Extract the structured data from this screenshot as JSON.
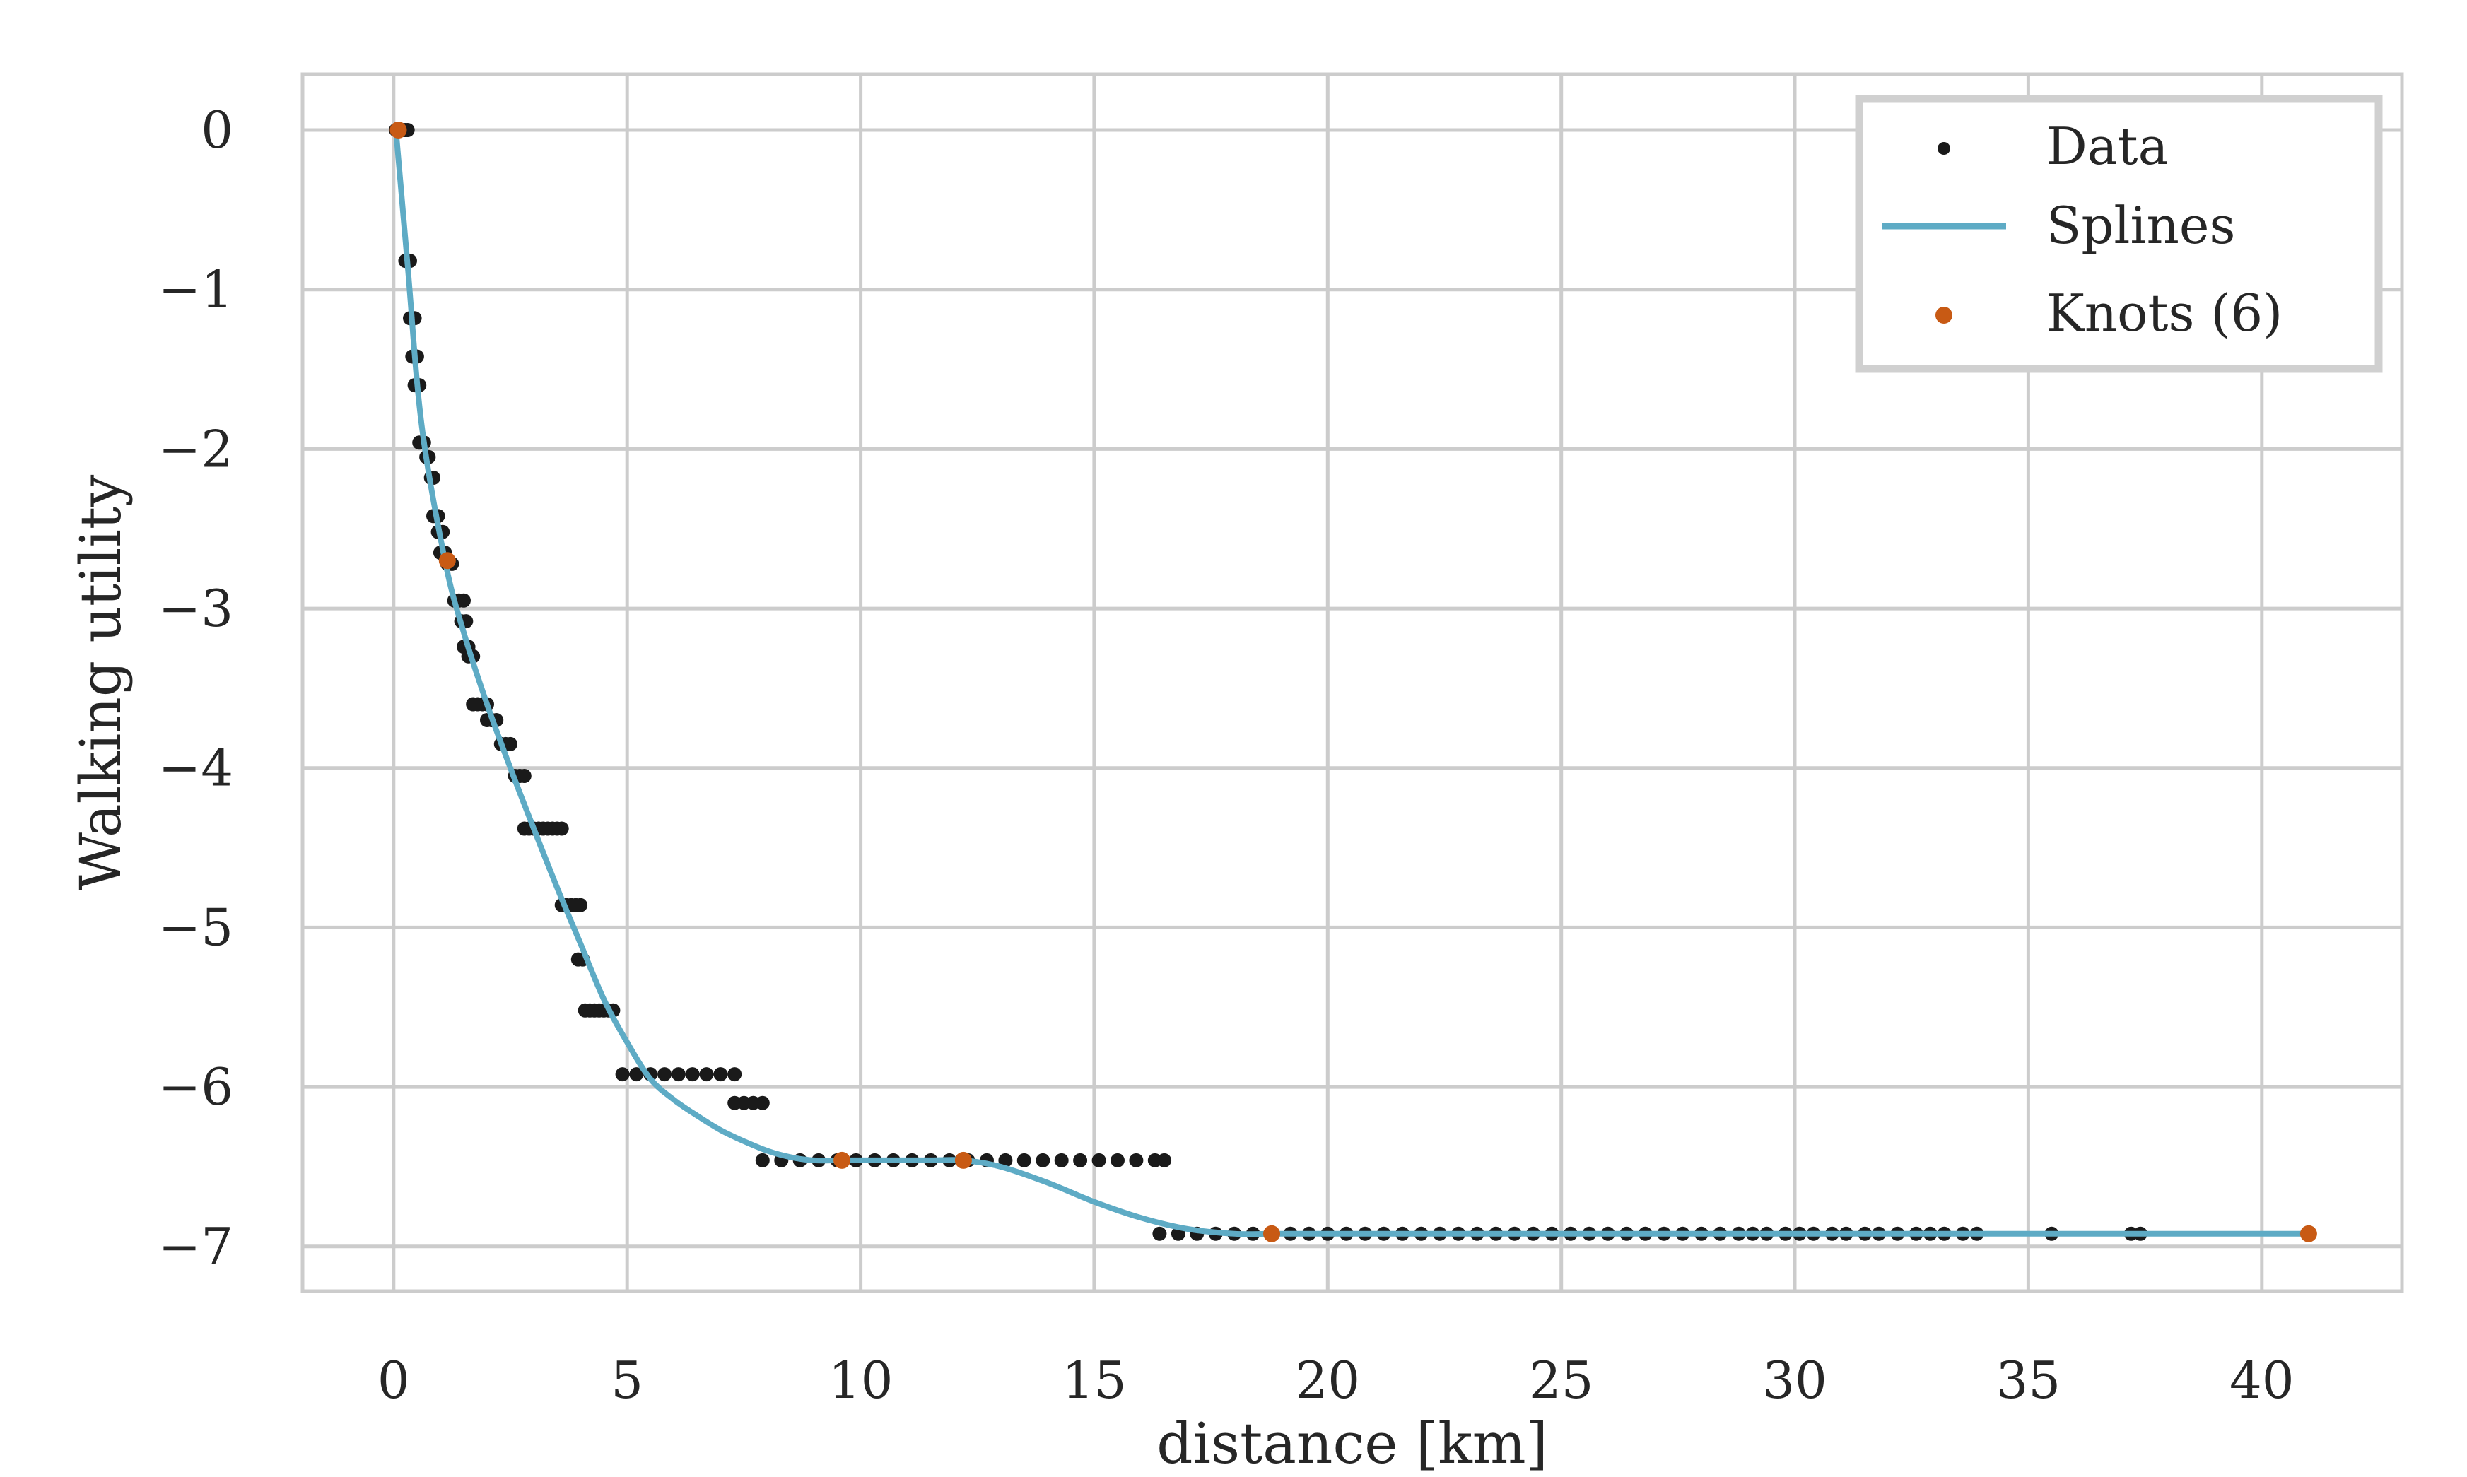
{
  "chart_data": {
    "type": "scatter",
    "title": "",
    "xlabel": "distance [km]",
    "ylabel": "Walking utility",
    "xlim": [
      -1.95,
      43.0
    ],
    "ylim": [
      -7.28,
      0.35
    ],
    "xticks": [
      0,
      5,
      10,
      15,
      20,
      25,
      30,
      35,
      40
    ],
    "yticks": [
      0,
      -1,
      -2,
      -3,
      -4,
      -5,
      -6,
      -7
    ],
    "xtick_labels": [
      "0",
      "5",
      "10",
      "15",
      "20",
      "25",
      "30",
      "35",
      "40"
    ],
    "ytick_labels": [
      "0",
      "−1",
      "−2",
      "−3",
      "−4",
      "−5",
      "−6",
      "−7"
    ],
    "grid": true,
    "legend": {
      "position": "top-right",
      "entries": [
        {
          "label": "Data",
          "kind": "marker",
          "color": "#1a1a1a"
        },
        {
          "label": "Splines",
          "kind": "line",
          "color": "#5eabc5"
        },
        {
          "label": "Knots (6)",
          "kind": "marker",
          "color": "#c85a14"
        }
      ]
    },
    "series": [
      {
        "name": "Data",
        "kind": "scatter",
        "color": "#1a1a1a",
        "points": [
          [
            0.05,
            0.0
          ],
          [
            0.1,
            0.0
          ],
          [
            0.15,
            0.0
          ],
          [
            0.2,
            0.0
          ],
          [
            0.25,
            0.0
          ],
          [
            0.3,
            0.0
          ],
          [
            0.25,
            -0.82
          ],
          [
            0.35,
            -0.82
          ],
          [
            0.35,
            -1.18
          ],
          [
            0.45,
            -1.18
          ],
          [
            0.4,
            -1.42
          ],
          [
            0.5,
            -1.42
          ],
          [
            0.45,
            -1.6
          ],
          [
            0.55,
            -1.6
          ],
          [
            0.55,
            -1.96
          ],
          [
            0.65,
            -1.96
          ],
          [
            0.7,
            -2.05
          ],
          [
            0.75,
            -2.05
          ],
          [
            0.8,
            -2.18
          ],
          [
            0.85,
            -2.18
          ],
          [
            0.85,
            -2.42
          ],
          [
            0.95,
            -2.42
          ],
          [
            0.95,
            -2.52
          ],
          [
            1.05,
            -2.52
          ],
          [
            1.0,
            -2.65
          ],
          [
            1.1,
            -2.65
          ],
          [
            1.15,
            -2.72
          ],
          [
            1.25,
            -2.72
          ],
          [
            1.3,
            -2.95
          ],
          [
            1.4,
            -2.95
          ],
          [
            1.5,
            -2.95
          ],
          [
            1.45,
            -3.08
          ],
          [
            1.55,
            -3.08
          ],
          [
            1.5,
            -3.24
          ],
          [
            1.6,
            -3.24
          ],
          [
            1.6,
            -3.3
          ],
          [
            1.7,
            -3.3
          ],
          [
            1.7,
            -3.6
          ],
          [
            1.8,
            -3.6
          ],
          [
            1.9,
            -3.6
          ],
          [
            2.0,
            -3.6
          ],
          [
            2.0,
            -3.7
          ],
          [
            2.1,
            -3.7
          ],
          [
            2.2,
            -3.7
          ],
          [
            2.3,
            -3.85
          ],
          [
            2.4,
            -3.85
          ],
          [
            2.5,
            -3.85
          ],
          [
            2.6,
            -4.05
          ],
          [
            2.7,
            -4.05
          ],
          [
            2.8,
            -4.05
          ],
          [
            2.8,
            -4.38
          ],
          [
            2.9,
            -4.38
          ],
          [
            3.0,
            -4.38
          ],
          [
            3.1,
            -4.38
          ],
          [
            3.2,
            -4.38
          ],
          [
            3.3,
            -4.38
          ],
          [
            3.4,
            -4.38
          ],
          [
            3.5,
            -4.38
          ],
          [
            3.6,
            -4.38
          ],
          [
            3.6,
            -4.86
          ],
          [
            3.7,
            -4.86
          ],
          [
            3.8,
            -4.86
          ],
          [
            3.9,
            -4.86
          ],
          [
            4.0,
            -4.86
          ],
          [
            3.95,
            -5.2
          ],
          [
            4.05,
            -5.2
          ],
          [
            4.1,
            -5.52
          ],
          [
            4.2,
            -5.52
          ],
          [
            4.3,
            -5.52
          ],
          [
            4.4,
            -5.52
          ],
          [
            4.5,
            -5.52
          ],
          [
            4.6,
            -5.52
          ],
          [
            4.7,
            -5.52
          ],
          [
            4.9,
            -5.92
          ],
          [
            5.2,
            -5.92
          ],
          [
            5.5,
            -5.92
          ],
          [
            5.8,
            -5.92
          ],
          [
            6.1,
            -5.92
          ],
          [
            6.4,
            -5.92
          ],
          [
            6.7,
            -5.92
          ],
          [
            7.0,
            -5.92
          ],
          [
            7.3,
            -5.92
          ],
          [
            7.3,
            -6.1
          ],
          [
            7.5,
            -6.1
          ],
          [
            7.7,
            -6.1
          ],
          [
            7.9,
            -6.1
          ],
          [
            7.9,
            -6.46
          ],
          [
            8.3,
            -6.46
          ],
          [
            8.7,
            -6.46
          ],
          [
            9.1,
            -6.46
          ],
          [
            9.5,
            -6.46
          ],
          [
            9.9,
            -6.46
          ],
          [
            10.3,
            -6.46
          ],
          [
            10.7,
            -6.46
          ],
          [
            11.1,
            -6.46
          ],
          [
            11.5,
            -6.46
          ],
          [
            11.9,
            -6.46
          ],
          [
            12.3,
            -6.46
          ],
          [
            12.7,
            -6.46
          ],
          [
            13.1,
            -6.46
          ],
          [
            13.5,
            -6.46
          ],
          [
            13.9,
            -6.46
          ],
          [
            14.3,
            -6.46
          ],
          [
            14.7,
            -6.46
          ],
          [
            15.1,
            -6.46
          ],
          [
            15.5,
            -6.46
          ],
          [
            15.9,
            -6.46
          ],
          [
            16.3,
            -6.46
          ],
          [
            16.5,
            -6.46
          ],
          [
            16.4,
            -6.92
          ],
          [
            16.8,
            -6.92
          ],
          [
            17.2,
            -6.92
          ],
          [
            17.6,
            -6.92
          ],
          [
            18.0,
            -6.92
          ],
          [
            18.4,
            -6.92
          ],
          [
            18.8,
            -6.92
          ],
          [
            19.2,
            -6.92
          ],
          [
            19.6,
            -6.92
          ],
          [
            20.0,
            -6.92
          ],
          [
            20.4,
            -6.92
          ],
          [
            20.8,
            -6.92
          ],
          [
            21.2,
            -6.92
          ],
          [
            21.6,
            -6.92
          ],
          [
            22.0,
            -6.92
          ],
          [
            22.4,
            -6.92
          ],
          [
            22.8,
            -6.92
          ],
          [
            23.2,
            -6.92
          ],
          [
            23.6,
            -6.92
          ],
          [
            24.0,
            -6.92
          ],
          [
            24.4,
            -6.92
          ],
          [
            24.8,
            -6.92
          ],
          [
            25.2,
            -6.92
          ],
          [
            25.6,
            -6.92
          ],
          [
            26.0,
            -6.92
          ],
          [
            26.4,
            -6.92
          ],
          [
            26.8,
            -6.92
          ],
          [
            27.2,
            -6.92
          ],
          [
            27.6,
            -6.92
          ],
          [
            28.0,
            -6.92
          ],
          [
            28.4,
            -6.92
          ],
          [
            28.8,
            -6.92
          ],
          [
            29.1,
            -6.92
          ],
          [
            29.4,
            -6.92
          ],
          [
            29.8,
            -6.92
          ],
          [
            30.1,
            -6.92
          ],
          [
            30.4,
            -6.92
          ],
          [
            30.8,
            -6.92
          ],
          [
            31.1,
            -6.92
          ],
          [
            31.5,
            -6.92
          ],
          [
            31.8,
            -6.92
          ],
          [
            32.2,
            -6.92
          ],
          [
            32.6,
            -6.92
          ],
          [
            32.9,
            -6.92
          ],
          [
            33.2,
            -6.92
          ],
          [
            33.6,
            -6.92
          ],
          [
            33.9,
            -6.92
          ],
          [
            35.5,
            -6.92
          ],
          [
            37.2,
            -6.92
          ],
          [
            37.4,
            -6.92
          ]
        ]
      },
      {
        "name": "Splines",
        "kind": "line",
        "color": "#5eabc5",
        "x": [
          0.05,
          0.3,
          0.6,
          1.1,
          1.5,
          2.0,
          2.5,
          3.0,
          3.5,
          4.0,
          4.5,
          5.0,
          5.5,
          6.0,
          6.5,
          7.0,
          7.5,
          8.0,
          8.5,
          9.0,
          9.6,
          10.5,
          11.5,
          12.2,
          13.0,
          14.0,
          15.0,
          16.0,
          17.0,
          18.0,
          18.8,
          20.0,
          25.0,
          30.0,
          35.0,
          41.0
        ],
        "y": [
          0.0,
          -0.85,
          -1.85,
          -2.7,
          -3.15,
          -3.6,
          -4.0,
          -4.38,
          -4.75,
          -5.1,
          -5.45,
          -5.72,
          -5.95,
          -6.08,
          -6.18,
          -6.27,
          -6.34,
          -6.4,
          -6.44,
          -6.46,
          -6.46,
          -6.46,
          -6.46,
          -6.46,
          -6.5,
          -6.6,
          -6.72,
          -6.82,
          -6.89,
          -6.92,
          -6.92,
          -6.92,
          -6.92,
          -6.92,
          -6.92,
          -6.92
        ]
      },
      {
        "name": "Knots (6)",
        "kind": "scatter",
        "color": "#c85a14",
        "points": [
          [
            0.1,
            0.0
          ],
          [
            1.15,
            -2.7
          ],
          [
            9.6,
            -6.46
          ],
          [
            12.2,
            -6.46
          ],
          [
            18.8,
            -6.92
          ],
          [
            41.0,
            -6.92
          ]
        ]
      }
    ]
  }
}
